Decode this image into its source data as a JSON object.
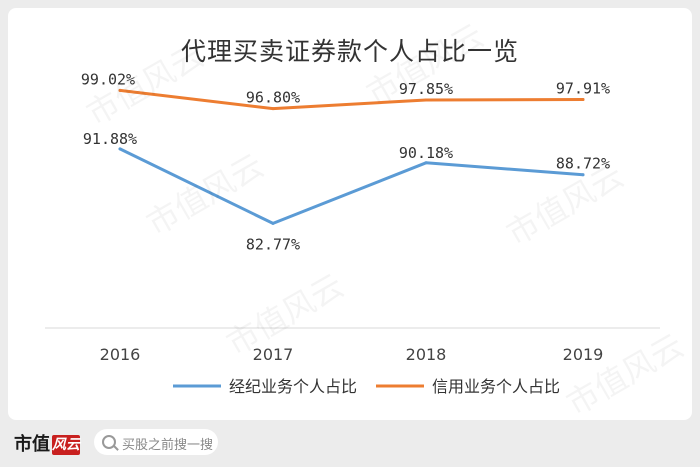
{
  "chart_data": {
    "type": "line",
    "title": "代理买卖证券款个人占比一览",
    "categories": [
      "2016",
      "2017",
      "2018",
      "2019"
    ],
    "series": [
      {
        "name": "经纪业务个人占比",
        "values": [
          91.88,
          82.77,
          90.18,
          88.72
        ],
        "labels": [
          "91.88%",
          "82.77%",
          "90.18%",
          "88.72%"
        ],
        "color": "#5b9bd5"
      },
      {
        "name": "信用业务个人占比",
        "values": [
          99.02,
          96.8,
          97.85,
          97.91
        ],
        "labels": [
          "99.02%",
          "96.80%",
          "97.85%",
          "97.91%"
        ],
        "color": "#ed7d31"
      }
    ],
    "xlabel": "",
    "ylabel": "",
    "ylim": [
      70,
      102
    ],
    "grid": false,
    "legend": "bottom"
  },
  "watermark": "市值风云",
  "footer": {
    "brand": "市值",
    "logo": "风云",
    "search_placeholder": "买股之前搜一搜"
  }
}
